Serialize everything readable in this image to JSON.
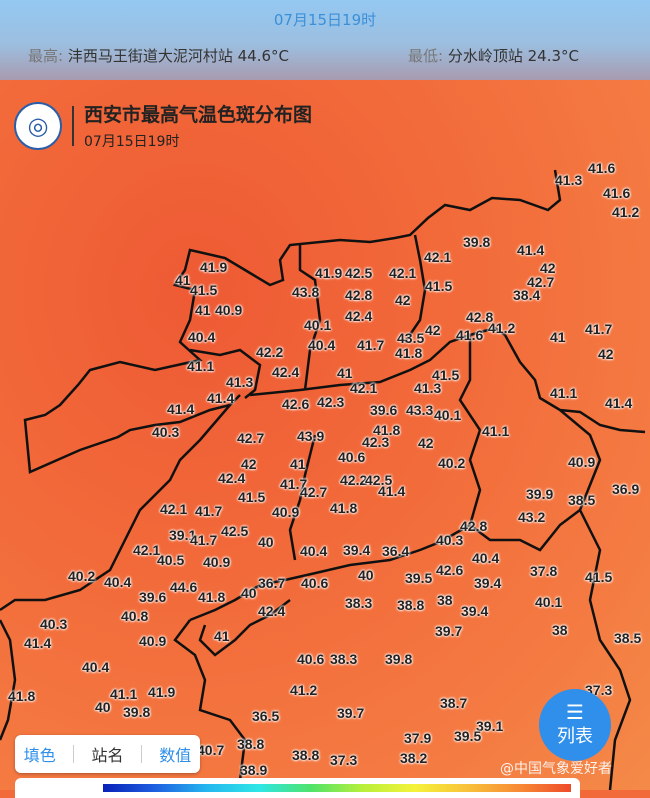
{
  "top": {
    "time": "07月15日19时",
    "max_label": "最高:",
    "max_station": "沣西马王街道大泥河村站 44.6°C",
    "min_label": "最低:",
    "min_station": "分水岭顶站 24.3°C"
  },
  "map": {
    "title": "西安市最高气温色斑分布图",
    "subtitle": "07月15日19时",
    "logo_icon": "meteorology-logo"
  },
  "stations": [
    "41.3",
    "41.6",
    "41.6",
    "41.2",
    "39.8",
    "41.4",
    "42.1",
    "42",
    "42.7",
    "41.5",
    "38.4",
    "41.9",
    "41.5",
    "41",
    "40.9",
    "40.4",
    "41",
    "41.9",
    "42.5",
    "42.1",
    "43.8",
    "42.8",
    "42",
    "42.8",
    "42.4",
    "41.7",
    "40.1",
    "42",
    "42.2",
    "40.4",
    "41.7",
    "43.5",
    "41.6",
    "41.2",
    "41",
    "42",
    "41.8",
    "41.1",
    "41.3",
    "42.4",
    "41",
    "41.5",
    "42.1",
    "41.3",
    "41.1",
    "41.4",
    "41.4",
    "42.6",
    "42.3",
    "39.6",
    "43.3",
    "40.1",
    "41.4",
    "40.3",
    "42.7",
    "43.9",
    "41.8",
    "42.3",
    "42",
    "41.1",
    "42",
    "41",
    "40.6",
    "40.2",
    "40.9",
    "42.4",
    "41.5",
    "41.7",
    "42.7",
    "42.2",
    "42.5",
    "41.4",
    "42.1",
    "41.7",
    "42.5",
    "40.9",
    "41.8",
    "39.9",
    "38.5",
    "36.9",
    "43.2",
    "42.8",
    "40.3",
    "39.1",
    "41.7",
    "40",
    "42.1",
    "40.5",
    "40.9",
    "40.4",
    "39.4",
    "36.4",
    "40.4",
    "40.2",
    "40.4",
    "40",
    "39.5",
    "42.6",
    "37.8",
    "41.5",
    "39.6",
    "44.6",
    "41.8",
    "40",
    "36.7",
    "40.6",
    "38.8",
    "38",
    "39.4",
    "39.4",
    "40.1",
    "40.3",
    "41.4",
    "40.8",
    "42.4",
    "38.3",
    "40.9",
    "41",
    "39.7",
    "38",
    "38.5",
    "40.4",
    "40.6",
    "38.3",
    "39.8",
    "41.8",
    "40",
    "41.1",
    "41.9",
    "39.8",
    "41.2",
    "38.7",
    "36.5",
    "39.7",
    "39.1",
    "37.3",
    "38.8",
    "40.7",
    "38.8",
    "37.3",
    "37.9",
    "39.5",
    "38.2",
    "38.9"
  ],
  "tools": {
    "fill": "填色",
    "name": "站名",
    "value": "数值"
  },
  "list_button": {
    "label": "列表",
    "icon": "list-icon"
  },
  "watermark": "@中国气象爱好者",
  "colors": {
    "hot": "#f26a3a",
    "accent": "#2f8fea"
  }
}
